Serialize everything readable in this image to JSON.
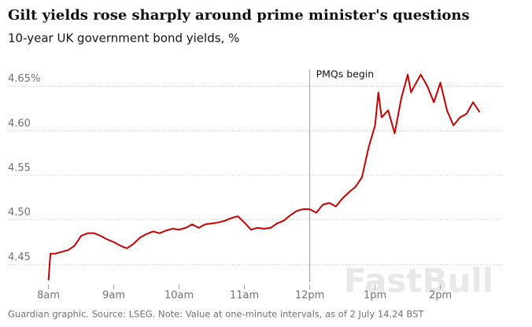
{
  "chart_data": {
    "type": "line",
    "title": "Gilt yields rose sharply around prime minister's questions",
    "subtitle": "10-year UK government bond yields, %",
    "source": "Guardian graphic. Source: LSEG. Note: Value at one-minute intervals, as of 2 July 14.24 BST",
    "watermark": "FastBull",
    "annotation": {
      "text": "PMQs begin",
      "x": 12
    },
    "x": [
      8.0,
      8.03,
      8.1,
      8.2,
      8.3,
      8.4,
      8.5,
      8.6,
      8.7,
      8.8,
      8.9,
      9.0,
      9.1,
      9.2,
      9.3,
      9.4,
      9.5,
      9.6,
      9.7,
      9.8,
      9.9,
      10.0,
      10.1,
      10.2,
      10.3,
      10.4,
      10.5,
      10.6,
      10.7,
      10.8,
      10.9,
      11.0,
      11.1,
      11.2,
      11.3,
      11.4,
      11.5,
      11.6,
      11.7,
      11.8,
      11.9,
      12.0,
      12.1,
      12.2,
      12.3,
      12.4,
      12.5,
      12.6,
      12.7,
      12.8,
      12.9,
      13.0,
      13.05,
      13.1,
      13.2,
      13.3,
      13.4,
      13.5,
      13.55,
      13.6,
      13.7,
      13.8,
      13.9,
      14.0,
      14.1,
      14.2,
      14.3,
      14.4,
      14.5,
      14.6
    ],
    "series": [
      {
        "name": "10-year gilt yield",
        "color": "#c70000",
        "values": [
          4.432,
          4.462,
          4.462,
          4.464,
          4.466,
          4.471,
          4.482,
          4.485,
          4.485,
          4.482,
          4.478,
          4.475,
          4.471,
          4.468,
          4.473,
          4.48,
          4.484,
          4.487,
          4.485,
          4.488,
          4.49,
          4.489,
          4.491,
          4.495,
          4.491,
          4.495,
          4.496,
          4.497,
          4.499,
          4.502,
          4.504,
          4.497,
          4.489,
          4.491,
          4.49,
          4.491,
          4.496,
          4.499,
          4.505,
          4.51,
          4.512,
          4.512,
          4.508,
          4.517,
          4.519,
          4.515,
          4.524,
          4.531,
          4.537,
          4.548,
          4.581,
          4.606,
          4.643,
          4.615,
          4.623,
          4.597,
          4.636,
          4.663,
          4.643,
          4.65,
          4.663,
          4.65,
          4.632,
          4.654,
          4.623,
          4.606,
          4.615,
          4.619,
          4.632,
          4.621
        ]
      }
    ],
    "xlim": [
      7.8,
      14.8
    ],
    "xticks": [
      {
        "value": 8,
        "label": "8am"
      },
      {
        "value": 9,
        "label": "9am"
      },
      {
        "value": 10,
        "label": "10am"
      },
      {
        "value": 11,
        "label": "11am"
      },
      {
        "value": 12,
        "label": "12pm"
      },
      {
        "value": 13,
        "label": "1pm"
      },
      {
        "value": 14,
        "label": "2pm"
      }
    ],
    "ylim": [
      4.43,
      4.67
    ],
    "yticks": [
      4.45,
      {
        "value": 4.5,
        "label": "4.50"
      },
      4.55,
      {
        "value": 4.6,
        "label": "4.60"
      },
      {
        "value": 4.65,
        "label": "4.65%"
      }
    ],
    "grid": true
  }
}
